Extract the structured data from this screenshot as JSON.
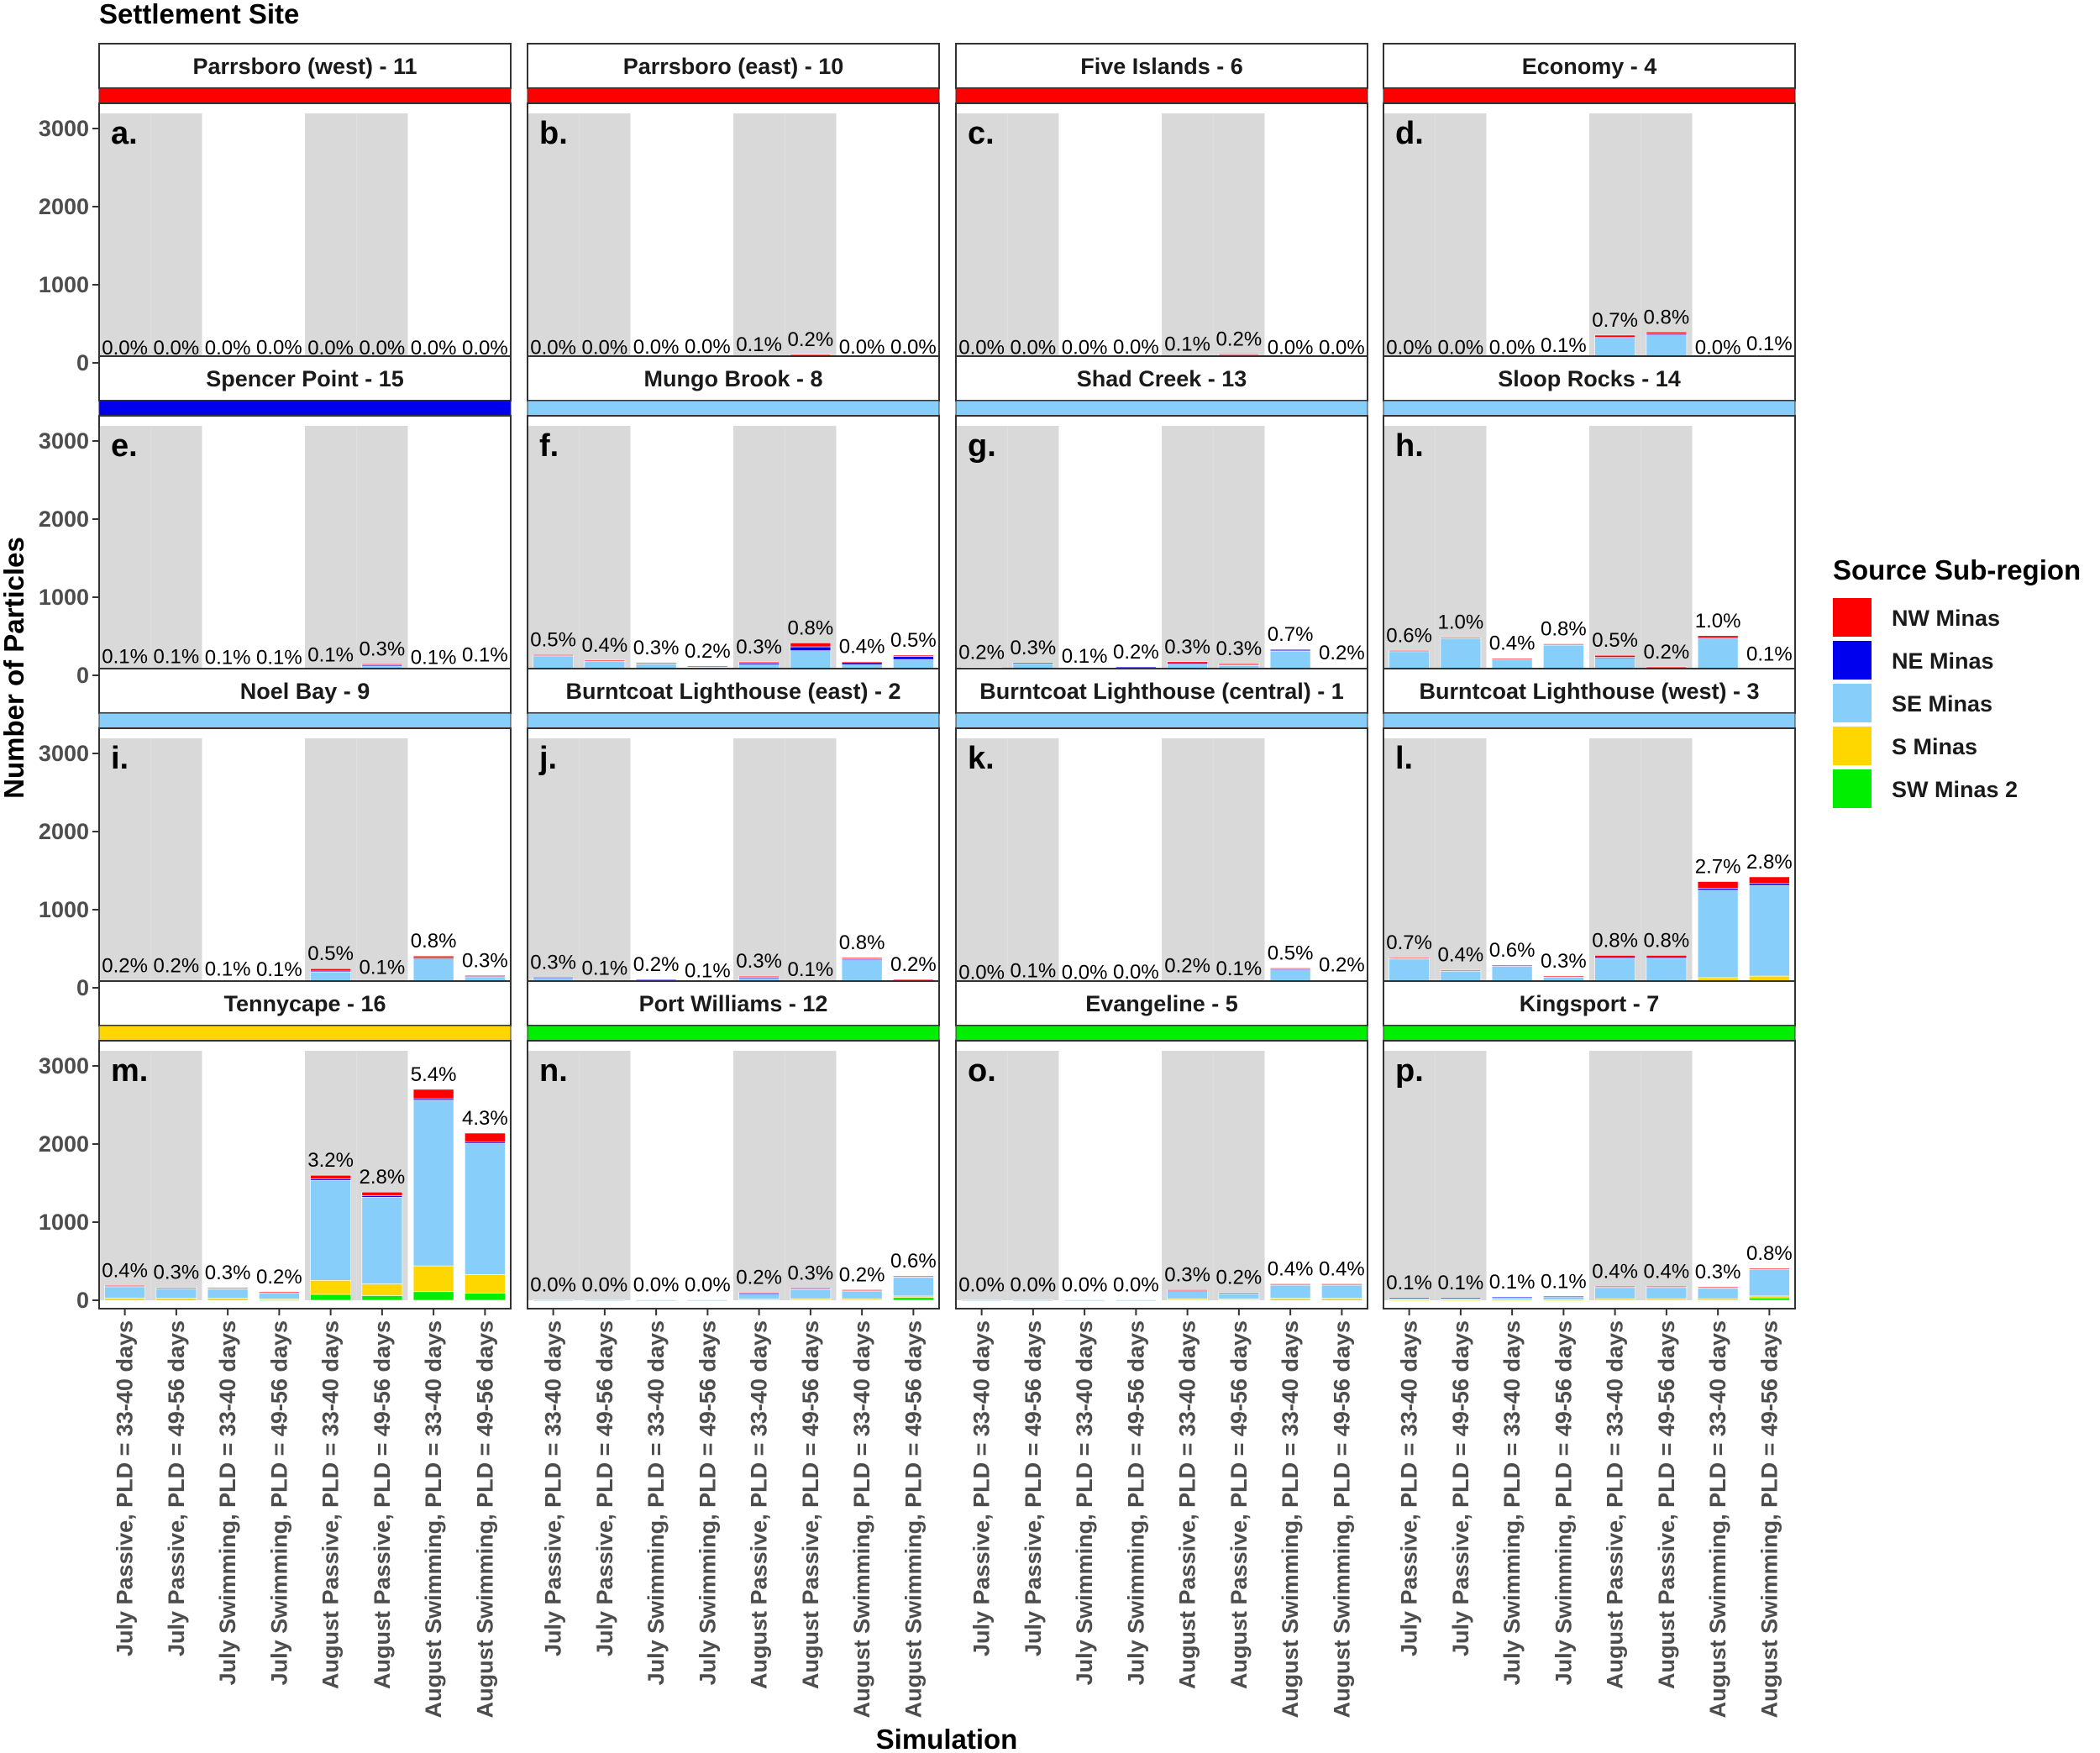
{
  "chart_data": {
    "type": "bar",
    "stacked": true,
    "figure_title": "Settlement Site",
    "xlabel": "Simulation",
    "ylabel": "Number of Particles",
    "ylim": [
      0,
      3300
    ],
    "yticks": [
      "0",
      "1000",
      "2000",
      "3000"
    ],
    "categories": [
      "July Passive, PLD = 33-40 days",
      "July Passive, PLD = 49-56 days",
      "July Swimming, PLD = 33-40 days",
      "July Swimming, PLD = 49-56 days",
      "August Passive, PLD = 33-40 days",
      "August Passive, PLD = 49-56 days",
      "August Swimming, PLD = 33-40 days",
      "August Swimming, PLD = 49-56 days"
    ],
    "shaded_categories": [
      0,
      1,
      4,
      5
    ],
    "legend": {
      "title": "Source Sub-region",
      "position": "right",
      "entries": [
        {
          "name": "NW Minas",
          "color": "#ff0000"
        },
        {
          "name": "NE Minas",
          "color": "#0000ee"
        },
        {
          "name": "SE Minas",
          "color": "#87cefa"
        },
        {
          "name": "S Minas",
          "color": "#ffd700"
        },
        {
          "name": "SW Minas 2",
          "color": "#00ee00"
        }
      ]
    },
    "stack_order": [
      "SW Minas 2",
      "S Minas",
      "SE Minas",
      "NE Minas",
      "NW Minas"
    ],
    "panels": [
      {
        "tag": "a.",
        "title": "Parrsboro (west) - 11",
        "source_color": "#ff0000",
        "labels": [
          "0.0%",
          "0.0%",
          "0.0%",
          "0.0%",
          "0.0%",
          "0.0%",
          "0.0%",
          "0.0%"
        ],
        "series": {
          "SW Minas 2": [
            0,
            0,
            0,
            0,
            0,
            0,
            0,
            0
          ],
          "S Minas": [
            0,
            0,
            0,
            0,
            0,
            0,
            0,
            0
          ],
          "SE Minas": [
            0,
            0,
            0,
            5,
            0,
            0,
            0,
            0
          ],
          "NE Minas": [
            0,
            0,
            0,
            0,
            0,
            0,
            0,
            0
          ],
          "NW Minas": [
            0,
            0,
            0,
            0,
            0,
            0,
            0,
            0
          ]
        }
      },
      {
        "tag": "b.",
        "title": "Parrsboro (east) - 10",
        "source_color": "#ff0000",
        "labels": [
          "0.0%",
          "0.0%",
          "0.0%",
          "0.0%",
          "0.1%",
          "0.2%",
          "0.0%",
          "0.0%"
        ],
        "series": {
          "SW Minas 2": [
            0,
            0,
            3,
            3,
            4,
            6,
            0,
            2
          ],
          "S Minas": [
            0,
            0,
            0,
            0,
            2,
            4,
            0,
            0
          ],
          "SE Minas": [
            5,
            5,
            8,
            15,
            35,
            90,
            10,
            10
          ],
          "NE Minas": [
            0,
            0,
            0,
            0,
            2,
            5,
            0,
            0
          ],
          "NW Minas": [
            0,
            0,
            0,
            0,
            2,
            5,
            0,
            0
          ]
        }
      },
      {
        "tag": "c.",
        "title": "Five Islands - 6",
        "source_color": "#ff0000",
        "labels": [
          "0.0%",
          "0.0%",
          "0.0%",
          "0.0%",
          "0.1%",
          "0.2%",
          "0.0%",
          "0.0%"
        ],
        "series": {
          "SW Minas 2": [
            0,
            0,
            0,
            0,
            3,
            4,
            0,
            3
          ],
          "S Minas": [
            0,
            0,
            0,
            0,
            2,
            4,
            0,
            0
          ],
          "SE Minas": [
            5,
            5,
            5,
            12,
            35,
            95,
            5,
            5
          ],
          "NE Minas": [
            0,
            0,
            0,
            0,
            2,
            3,
            0,
            0
          ],
          "NW Minas": [
            0,
            0,
            0,
            0,
            4,
            8,
            0,
            0
          ]
        }
      },
      {
        "tag": "d.",
        "title": "Economy - 4",
        "source_color": "#ff0000",
        "labels": [
          "0.0%",
          "0.0%",
          "0.0%",
          "0.1%",
          "0.7%",
          "0.8%",
          "0.0%",
          "0.1%"
        ],
        "series": {
          "SW Minas 2": [
            0,
            0,
            0,
            2,
            15,
            20,
            0,
            3
          ],
          "S Minas": [
            0,
            0,
            0,
            3,
            25,
            30,
            0,
            4
          ],
          "SE Minas": [
            5,
            5,
            5,
            25,
            285,
            315,
            5,
            45
          ],
          "NE Minas": [
            0,
            0,
            0,
            0,
            5,
            5,
            0,
            0
          ],
          "NW Minas": [
            0,
            0,
            0,
            0,
            25,
            25,
            0,
            0
          ]
        }
      },
      {
        "tag": "e.",
        "title": "Spencer Point - 15",
        "source_color": "#0000ee",
        "labels": [
          "0.1%",
          "0.1%",
          "0.1%",
          "0.1%",
          "0.1%",
          "0.3%",
          "0.1%",
          "0.1%"
        ],
        "series": {
          "SW Minas 2": [
            3,
            3,
            2,
            2,
            3,
            4,
            2,
            3
          ],
          "S Minas": [
            4,
            4,
            3,
            3,
            4,
            6,
            2,
            4
          ],
          "SE Minas": [
            38,
            38,
            30,
            28,
            45,
            110,
            22,
            50
          ],
          "NE Minas": [
            5,
            5,
            4,
            4,
            6,
            12,
            12,
            12
          ],
          "NW Minas": [
            0,
            0,
            0,
            0,
            12,
            15,
            0,
            3
          ]
        }
      },
      {
        "tag": "f.",
        "title": "Mungo Brook - 8",
        "source_color": "#87cefa",
        "labels": [
          "0.5%",
          "0.4%",
          "0.3%",
          "0.2%",
          "0.3%",
          "0.8%",
          "0.4%",
          "0.5%"
        ],
        "series": {
          "SW Minas 2": [
            10,
            10,
            6,
            6,
            6,
            10,
            5,
            8
          ],
          "S Minas": [
            25,
            35,
            15,
            10,
            20,
            30,
            15,
            15
          ],
          "SE Minas": [
            220,
            140,
            135,
            95,
            110,
            275,
            115,
            180
          ],
          "NE Minas": [
            5,
            5,
            3,
            3,
            20,
            50,
            35,
            40
          ],
          "NW Minas": [
            5,
            5,
            3,
            3,
            15,
            50,
            5,
            15
          ]
        }
      },
      {
        "tag": "g.",
        "title": "Shad Creek - 13",
        "source_color": "#87cefa",
        "labels": [
          "0.2%",
          "0.3%",
          "0.1%",
          "0.2%",
          "0.3%",
          "0.3%",
          "0.7%",
          "0.2%"
        ],
        "series": {
          "SW Minas 2": [
            3,
            3,
            2,
            3,
            4,
            4,
            5,
            3
          ],
          "S Minas": [
            10,
            10,
            5,
            10,
            10,
            10,
            15,
            5
          ],
          "SE Minas": [
            85,
            145,
            45,
            95,
            130,
            120,
            290,
            75
          ],
          "NE Minas": [
            2,
            5,
            2,
            2,
            5,
            5,
            15,
            10
          ],
          "NW Minas": [
            0,
            0,
            0,
            0,
            25,
            10,
            10,
            3
          ]
        }
      },
      {
        "tag": "h.",
        "title": "Sloop Rocks - 14",
        "source_color": "#87cefa",
        "labels": [
          "0.6%",
          "1.0%",
          "0.4%",
          "0.8%",
          "0.5%",
          "0.2%",
          "1.0%",
          "0.1%"
        ],
        "series": {
          "SW Minas 2": [
            5,
            8,
            5,
            8,
            6,
            3,
            8,
            2
          ],
          "S Minas": [
            20,
            55,
            30,
            55,
            20,
            10,
            30,
            5
          ],
          "SE Minas": [
            285,
            410,
            175,
            325,
            200,
            80,
            430,
            70
          ],
          "NE Minas": [
            5,
            10,
            5,
            10,
            5,
            5,
            15,
            2
          ],
          "NW Minas": [
            3,
            5,
            3,
            5,
            25,
            10,
            25,
            3
          ]
        }
      },
      {
        "tag": "i.",
        "title": "Noel Bay - 9",
        "source_color": "#87cefa",
        "labels": [
          "0.2%",
          "0.2%",
          "0.1%",
          "0.1%",
          "0.5%",
          "0.1%",
          "0.8%",
          "0.3%"
        ],
        "series": {
          "SW Minas 2": [
            3,
            3,
            2,
            2,
            5,
            2,
            6,
            3
          ],
          "S Minas": [
            5,
            5,
            3,
            3,
            20,
            5,
            35,
            20
          ],
          "SE Minas": [
            80,
            80,
            40,
            35,
            185,
            55,
            330,
            120
          ],
          "NE Minas": [
            2,
            2,
            1,
            1,
            5,
            2,
            10,
            5
          ],
          "NW Minas": [
            0,
            0,
            0,
            0,
            30,
            5,
            25,
            10
          ]
        }
      },
      {
        "tag": "j.",
        "title": "Burntcoat Lighthouse (east) - 2",
        "source_color": "#87cefa",
        "labels": [
          "0.3%",
          "0.1%",
          "0.2%",
          "0.1%",
          "0.3%",
          "0.1%",
          "0.8%",
          "0.2%"
        ],
        "series": {
          "SW Minas 2": [
            3,
            2,
            3,
            2,
            3,
            2,
            6,
            3
          ],
          "S Minas": [
            5,
            3,
            5,
            3,
            10,
            3,
            25,
            10
          ],
          "SE Minas": [
            125,
            55,
            95,
            20,
            115,
            35,
            330,
            85
          ],
          "NE Minas": [
            2,
            1,
            2,
            1,
            5,
            2,
            10,
            3
          ],
          "NW Minas": [
            0,
            0,
            0,
            0,
            15,
            3,
            15,
            5
          ]
        }
      },
      {
        "tag": "k.",
        "title": "Burntcoat Lighthouse (central) - 1",
        "source_color": "#87cefa",
        "labels": [
          "0.0%",
          "0.1%",
          "0.0%",
          "0.0%",
          "0.2%",
          "0.1%",
          "0.5%",
          "0.2%"
        ],
        "series": {
          "SW Minas 2": [
            0,
            1,
            0,
            0,
            2,
            1,
            3,
            2
          ],
          "S Minas": [
            0,
            2,
            0,
            0,
            5,
            3,
            10,
            5
          ],
          "SE Minas": [
            5,
            25,
            5,
            12,
            70,
            40,
            220,
            85
          ],
          "NE Minas": [
            0,
            1,
            0,
            0,
            5,
            3,
            10,
            3
          ],
          "NW Minas": [
            0,
            0,
            0,
            0,
            10,
            5,
            10,
            5
          ]
        }
      },
      {
        "tag": "l.",
        "title": "Burntcoat Lighthouse (west) - 3",
        "source_color": "#87cefa",
        "labels": [
          "0.7%",
          "0.4%",
          "0.6%",
          "0.3%",
          "0.8%",
          "0.8%",
          "2.7%",
          "2.8%"
        ],
        "series": {
          "SW Minas 2": [
            15,
            10,
            12,
            8,
            20,
            20,
            30,
            35
          ],
          "S Minas": [
            45,
            25,
            35,
            20,
            45,
            45,
            100,
            115
          ],
          "SE Minas": [
            315,
            185,
            235,
            115,
            310,
            310,
            1120,
            1160
          ],
          "NE Minas": [
            5,
            5,
            5,
            5,
            10,
            10,
            25,
            25
          ],
          "NW Minas": [
            5,
            5,
            5,
            3,
            30,
            30,
            85,
            85
          ]
        }
      },
      {
        "tag": "m.",
        "title": "Tennycape - 16",
        "source_color": "#ffd700",
        "labels": [
          "0.4%",
          "0.3%",
          "0.3%",
          "0.2%",
          "3.2%",
          "2.8%",
          "5.4%",
          "4.3%"
        ],
        "series": {
          "SW Minas 2": [
            10,
            10,
            10,
            8,
            75,
            60,
            110,
            90
          ],
          "S Minas": [
            20,
            15,
            15,
            10,
            180,
            150,
            330,
            240
          ],
          "SE Minas": [
            150,
            130,
            125,
            85,
            1280,
            1110,
            2120,
            1680
          ],
          "NE Minas": [
            5,
            5,
            5,
            3,
            20,
            20,
            20,
            20
          ],
          "NW Minas": [
            5,
            5,
            5,
            3,
            45,
            45,
            120,
            110
          ]
        }
      },
      {
        "tag": "n.",
        "title": "Port Williams - 12",
        "source_color": "#00ee00",
        "labels": [
          "0.0%",
          "0.0%",
          "0.0%",
          "0.0%",
          "0.2%",
          "0.3%",
          "0.2%",
          "0.6%"
        ],
        "series": {
          "SW Minas 2": [
            2,
            2,
            2,
            2,
            10,
            12,
            12,
            35
          ],
          "S Minas": [
            0,
            0,
            0,
            0,
            5,
            8,
            8,
            20
          ],
          "SE Minas": [
            3,
            3,
            3,
            3,
            70,
            125,
            105,
            245
          ],
          "NE Minas": [
            0,
            0,
            0,
            0,
            5,
            5,
            5,
            5
          ],
          "NW Minas": [
            0,
            0,
            0,
            0,
            12,
            8,
            5,
            5
          ]
        }
      },
      {
        "tag": "o.",
        "title": "Evangeline - 5",
        "source_color": "#00ee00",
        "labels": [
          "0.0%",
          "0.0%",
          "0.0%",
          "0.0%",
          "0.3%",
          "0.2%",
          "0.4%",
          "0.4%"
        ],
        "series": {
          "SW Minas 2": [
            2,
            2,
            2,
            2,
            12,
            10,
            15,
            15
          ],
          "S Minas": [
            0,
            0,
            0,
            0,
            8,
            6,
            10,
            10
          ],
          "SE Minas": [
            3,
            3,
            3,
            3,
            100,
            75,
            175,
            175
          ],
          "NE Minas": [
            0,
            0,
            0,
            0,
            5,
            5,
            5,
            5
          ],
          "NW Minas": [
            0,
            0,
            0,
            0,
            10,
            4,
            5,
            5
          ]
        }
      },
      {
        "tag": "p.",
        "title": "Kingsport - 7",
        "source_color": "#00ee00",
        "labels": [
          "0.1%",
          "0.1%",
          "0.1%",
          "0.1%",
          "0.4%",
          "0.4%",
          "0.3%",
          "0.8%"
        ],
        "series": {
          "SW Minas 2": [
            3,
            3,
            3,
            3,
            10,
            10,
            10,
            30
          ],
          "S Minas": [
            3,
            3,
            3,
            3,
            10,
            10,
            10,
            25
          ],
          "SE Minas": [
            25,
            25,
            30,
            40,
            150,
            150,
            140,
            345
          ],
          "NE Minas": [
            2,
            2,
            5,
            5,
            5,
            5,
            5,
            5
          ],
          "NW Minas": [
            0,
            0,
            0,
            0,
            5,
            5,
            5,
            5
          ]
        }
      }
    ]
  }
}
